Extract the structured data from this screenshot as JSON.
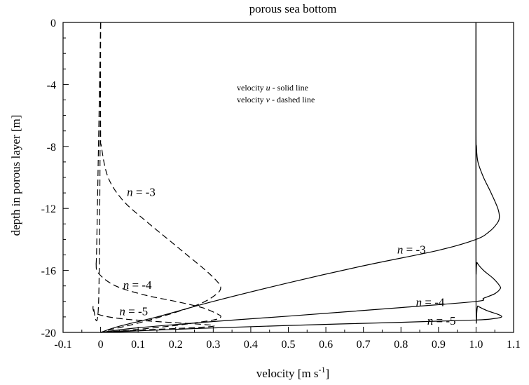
{
  "chart_data": {
    "type": "line",
    "title": "porous sea bottom",
    "xlabel": "velocity [m s",
    "xlabel_sup": "-1",
    "xlabel_end": "]",
    "ylabel": "depth in porous layer [m]",
    "xlim": [
      -0.1,
      1.1
    ],
    "ylim": [
      -20,
      0
    ],
    "x_ticks": [
      -0.1,
      0,
      0.1,
      0.2,
      0.3,
      0.4,
      0.5,
      0.6,
      0.7,
      0.8,
      0.9,
      1.0,
      1.1
    ],
    "x_tick_labels": [
      "-0.1",
      "0",
      "0.1",
      "0.2",
      "0.3",
      "0.4",
      "0.5",
      "0.6",
      "0.7",
      "0.8",
      "0.9",
      "1.0",
      "1.1"
    ],
    "y_ticks": [
      0,
      -4,
      -8,
      -12,
      -16,
      -20
    ],
    "y_tick_labels": [
      "0",
      "-4",
      "-8",
      "-12",
      "-16",
      "-20"
    ],
    "grid": false,
    "annotations": {
      "u_note_prefix": "velocity ",
      "u_var": "u",
      "u_note_suffix": "  - solid line",
      "v_note_prefix": "velocity ",
      "v_var": "v",
      "v_note_suffix": "  - dashed line"
    },
    "series": [
      {
        "label_var": "n",
        "label_text": " = -3",
        "style": "solid",
        "points": [
          [
            1.0,
            0
          ],
          [
            1.0,
            -7
          ],
          [
            1.001,
            -8
          ],
          [
            1.005,
            -9
          ],
          [
            1.02,
            -10
          ],
          [
            1.04,
            -11
          ],
          [
            1.058,
            -12
          ],
          [
            1.062,
            -12.6
          ],
          [
            1.055,
            -13
          ],
          [
            1.035,
            -13.5
          ],
          [
            1.0,
            -14
          ],
          [
            0.9,
            -14.7
          ],
          [
            0.7,
            -15.7
          ],
          [
            0.5,
            -16.8
          ],
          [
            0.3,
            -18
          ],
          [
            0.15,
            -19
          ],
          [
            0.05,
            -19.6
          ],
          [
            0,
            -20
          ]
        ]
      },
      {
        "label_var": "n",
        "label_text": " = -4",
        "style": "solid",
        "points": [
          [
            1.0,
            0
          ],
          [
            1.0,
            -15
          ],
          [
            1.003,
            -15.5
          ],
          [
            1.02,
            -16
          ],
          [
            1.045,
            -16.5
          ],
          [
            1.063,
            -17
          ],
          [
            1.064,
            -17.2
          ],
          [
            1.05,
            -17.5
          ],
          [
            1.02,
            -17.8
          ],
          [
            1.0,
            -18.0
          ],
          [
            0.8,
            -18.4
          ],
          [
            0.5,
            -18.95
          ],
          [
            0.3,
            -19.3
          ],
          [
            0.1,
            -19.7
          ],
          [
            0,
            -20
          ]
        ]
      },
      {
        "label_var": "n",
        "label_text": " = -5",
        "style": "solid",
        "points": [
          [
            1.0,
            0
          ],
          [
            1.0,
            -18
          ],
          [
            1.005,
            -18.3
          ],
          [
            1.03,
            -18.6
          ],
          [
            1.06,
            -18.85
          ],
          [
            1.068,
            -19
          ],
          [
            1.05,
            -19.1
          ],
          [
            1.0,
            -19.2
          ],
          [
            0.8,
            -19.35
          ],
          [
            0.5,
            -19.55
          ],
          [
            0.25,
            -19.75
          ],
          [
            0.1,
            -19.9
          ],
          [
            0,
            -20
          ]
        ]
      },
      {
        "label_var": "n",
        "label_text": " = -3",
        "style": "dashed",
        "points": [
          [
            0,
            0
          ],
          [
            0,
            -7
          ],
          [
            0.002,
            -8
          ],
          [
            0.02,
            -10
          ],
          [
            0.06,
            -11.5
          ],
          [
            0.12,
            -12.8
          ],
          [
            0.18,
            -14
          ],
          [
            0.23,
            -15
          ],
          [
            0.28,
            -16
          ],
          [
            0.31,
            -16.7
          ],
          [
            0.32,
            -17.1
          ],
          [
            0.31,
            -17.5
          ],
          [
            0.27,
            -18.1
          ],
          [
            0.2,
            -18.7
          ],
          [
            0.1,
            -19.4
          ],
          [
            0.03,
            -19.8
          ],
          [
            0,
            -20
          ]
        ]
      },
      {
        "label_var": "n",
        "label_text": " = -4",
        "style": "dashed",
        "points": [
          [
            0,
            0
          ],
          [
            -0.01,
            -14
          ],
          [
            -0.012,
            -15.5
          ],
          [
            -0.005,
            -16.2
          ],
          [
            0.04,
            -17
          ],
          [
            0.12,
            -17.6
          ],
          [
            0.2,
            -18
          ],
          [
            0.27,
            -18.4
          ],
          [
            0.31,
            -18.8
          ],
          [
            0.32,
            -19
          ],
          [
            0.3,
            -19.2
          ],
          [
            0.2,
            -19.55
          ],
          [
            0.08,
            -19.85
          ],
          [
            0,
            -20
          ]
        ]
      },
      {
        "label_var": "n",
        "label_text": " = -5",
        "style": "dashed",
        "points": [
          [
            0,
            0
          ],
          [
            -0.005,
            -17.8
          ],
          [
            -0.02,
            -18.3
          ],
          [
            -0.01,
            -18.8
          ],
          [
            0.05,
            -19.1
          ],
          [
            0.15,
            -19.3
          ],
          [
            0.25,
            -19.45
          ],
          [
            0.3,
            -19.55
          ],
          [
            0.28,
            -19.65
          ],
          [
            0.15,
            -19.8
          ],
          [
            0.05,
            -19.92
          ],
          [
            0,
            -20
          ]
        ]
      }
    ]
  }
}
